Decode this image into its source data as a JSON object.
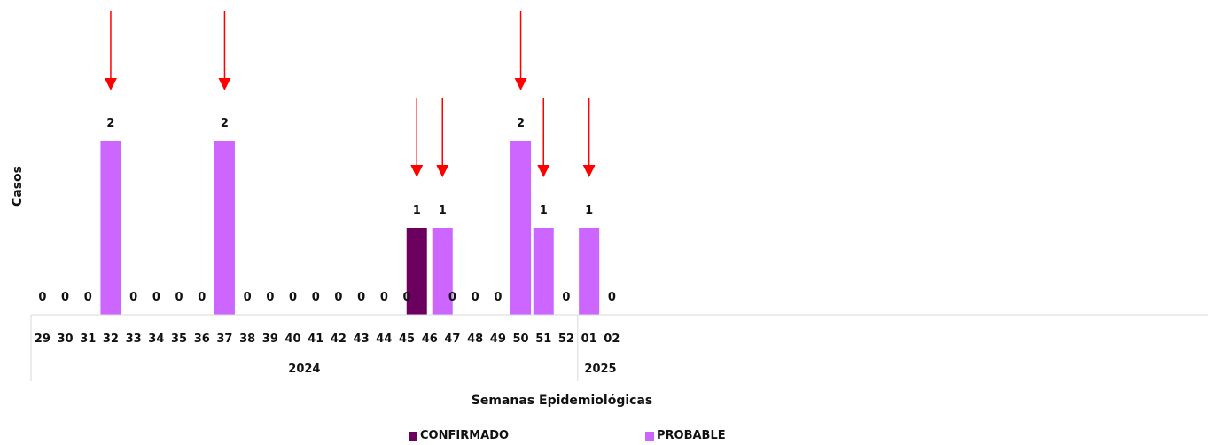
{
  "chart_data": {
    "type": "bar",
    "ylabel": "Casos",
    "xlabel": "Semanas Epidemiológicas",
    "categories": [
      "29",
      "30",
      "31",
      "32",
      "33",
      "34",
      "35",
      "36",
      "37",
      "38",
      "39",
      "40",
      "41",
      "42",
      "43",
      "44",
      "45",
      "46",
      "47",
      "48",
      "49",
      "50",
      "51",
      "52",
      "01",
      "02"
    ],
    "years": [
      {
        "label": "2024",
        "from": "29",
        "to": "52"
      },
      {
        "label": "2025",
        "from": "01",
        "to": "02"
      }
    ],
    "series": [
      {
        "name": "CONFIRMADO",
        "color": "#6b005e",
        "values": [
          0,
          0,
          0,
          0,
          0,
          0,
          0,
          0,
          0,
          0,
          0,
          0,
          0,
          0,
          0,
          0,
          0,
          1,
          0,
          0,
          0,
          0,
          0,
          0,
          0,
          0
        ]
      },
      {
        "name": "PROBABLE",
        "color": "#cc66ff",
        "values": [
          0,
          0,
          0,
          2,
          0,
          0,
          0,
          0,
          2,
          0,
          0,
          0,
          0,
          0,
          0,
          0,
          0,
          1,
          0,
          0,
          0,
          2,
          1,
          0,
          1,
          0
        ]
      }
    ],
    "arrow_markers": [
      {
        "category": "32",
        "series": "PROBABLE"
      },
      {
        "category": "37",
        "series": "PROBABLE"
      },
      {
        "category": "46",
        "series": "CONFIRMADO"
      },
      {
        "category": "46",
        "series": "PROBABLE"
      },
      {
        "category": "50",
        "series": "PROBABLE"
      },
      {
        "category": "51",
        "series": "PROBABLE"
      },
      {
        "category": "01",
        "series": "PROBABLE"
      }
    ],
    "arrow_color": "#ff0000",
    "grid": false,
    "legend_position": "bottom"
  }
}
